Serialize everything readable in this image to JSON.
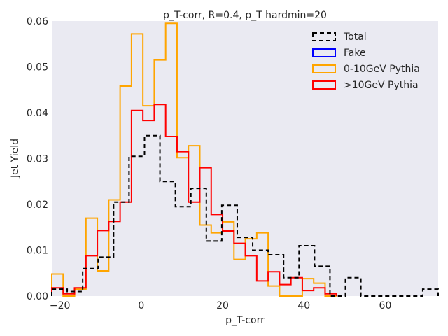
{
  "chart_data": {
    "type": "line",
    "style": "step-histogram",
    "title": "p_T-corr, R=0.4, p_T hardmin=20",
    "xlabel": "p_T-corr",
    "ylabel": "Jet Yield",
    "xlim": [
      -22,
      73
    ],
    "ylim": [
      0,
      0.06
    ],
    "xticks": [
      -20,
      0,
      20,
      40,
      60
    ],
    "yticks": [
      0.0,
      0.01,
      0.02,
      0.03,
      0.04,
      0.05,
      0.06
    ],
    "xtick_labels": [
      "−20",
      "0",
      "20",
      "40",
      "60"
    ],
    "ytick_labels": [
      "0.00",
      "0.01",
      "0.02",
      "0.03",
      "0.04",
      "0.05",
      "0.06"
    ],
    "grid": false,
    "background": "#eaeaf2",
    "legend_position": "top-right",
    "bin_edges": [
      -22.0,
      -19.2,
      -16.4,
      -13.6,
      -10.8,
      -8.0,
      -5.2,
      -2.4,
      0.4,
      3.2,
      6.0,
      8.8,
      11.6,
      14.4,
      17.2,
      20.0,
      22.8,
      25.6,
      28.4,
      31.2,
      34.0,
      36.8,
      39.6,
      42.4,
      45.2,
      48.0
    ],
    "series": [
      {
        "name": "Total",
        "color": "#000000",
        "dashed": true,
        "bin_edges": [
          -22.0,
          -18.2,
          -14.4,
          -10.6,
          -6.8,
          -3.0,
          0.8,
          4.6,
          8.4,
          12.2,
          16.0,
          19.8,
          23.6,
          27.4,
          31.2,
          35.0,
          38.8,
          42.6,
          46.4,
          50.2,
          54.0,
          57.8,
          61.6,
          65.4,
          69.2,
          73.0
        ],
        "values": [
          0.0015,
          0.001,
          0.006,
          0.0085,
          0.0205,
          0.0305,
          0.035,
          0.025,
          0.0195,
          0.0235,
          0.012,
          0.0198,
          0.0128,
          0.01,
          0.009,
          0.004,
          0.011,
          0.0065,
          0.0,
          0.004,
          0.0,
          0.0,
          0.0,
          0.0,
          0.0015
        ]
      },
      {
        "name": "Fake",
        "color": "#0000ff",
        "dashed": false,
        "values": []
      },
      {
        "name": "0-10GeV Pythia",
        "color": "#ffa500",
        "dashed": false,
        "values": [
          0.0048,
          0.0,
          0.0015,
          0.017,
          0.0055,
          0.021,
          0.0458,
          0.0572,
          0.0415,
          0.0515,
          0.0595,
          0.0302,
          0.0328,
          0.0155,
          0.0138,
          0.0162,
          0.008,
          0.0125,
          0.0138,
          0.0022,
          0.0,
          0.0,
          0.0038,
          0.0028,
          0.0
        ]
      },
      {
        "name": ">10GeV Pythia",
        "color": "#ff0000",
        "dashed": false,
        "values": [
          0.0018,
          0.0005,
          0.0018,
          0.0088,
          0.0143,
          0.0163,
          0.0205,
          0.0405,
          0.0383,
          0.0418,
          0.0348,
          0.0315,
          0.0205,
          0.028,
          0.0178,
          0.0142,
          0.0115,
          0.0088,
          0.0033,
          0.0053,
          0.0025,
          0.004,
          0.0012,
          0.0018,
          0.0005
        ]
      }
    ]
  }
}
